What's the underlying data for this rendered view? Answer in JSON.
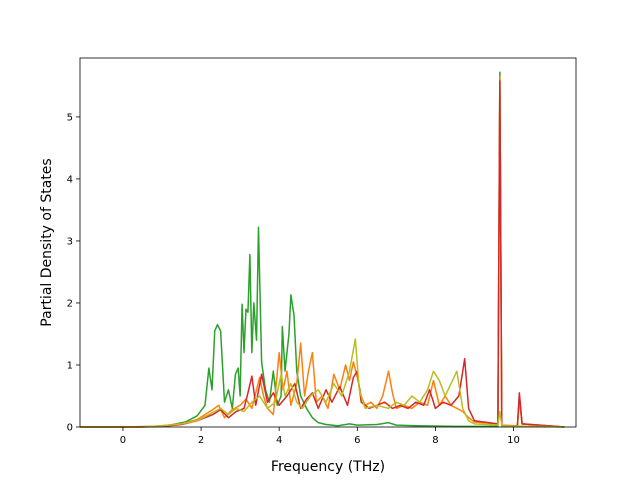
{
  "chart_data": {
    "type": "line",
    "title": "",
    "xlabel": "Frequency (THz)",
    "ylabel": "Partial Density of States",
    "xlim": [
      -1.1,
      11.6
    ],
    "ylim": [
      0,
      5.95
    ],
    "xticks": [
      0,
      2,
      4,
      6,
      8,
      10
    ],
    "yticks": [
      0,
      1,
      2,
      3,
      4,
      5
    ],
    "grid": false,
    "legend": "none",
    "series": [
      {
        "color": "#2ca02c",
        "points": [
          [
            -1.1,
            0
          ],
          [
            0.0,
            0
          ],
          [
            0.8,
            0.01
          ],
          [
            1.2,
            0.03
          ],
          [
            1.6,
            0.08
          ],
          [
            1.9,
            0.18
          ],
          [
            2.1,
            0.35
          ],
          [
            2.2,
            0.95
          ],
          [
            2.28,
            0.6
          ],
          [
            2.35,
            1.55
          ],
          [
            2.42,
            1.65
          ],
          [
            2.5,
            1.55
          ],
          [
            2.6,
            0.4
          ],
          [
            2.7,
            0.6
          ],
          [
            2.8,
            0.3
          ],
          [
            2.88,
            0.85
          ],
          [
            2.95,
            0.95
          ],
          [
            3.0,
            0.5
          ],
          [
            3.05,
            1.98
          ],
          [
            3.1,
            1.2
          ],
          [
            3.15,
            1.9
          ],
          [
            3.2,
            1.85
          ],
          [
            3.25,
            2.78
          ],
          [
            3.3,
            1.2
          ],
          [
            3.35,
            2.0
          ],
          [
            3.42,
            1.4
          ],
          [
            3.47,
            3.22
          ],
          [
            3.55,
            1.05
          ],
          [
            3.65,
            0.6
          ],
          [
            3.75,
            0.4
          ],
          [
            3.85,
            0.9
          ],
          [
            3.95,
            0.35
          ],
          [
            4.05,
            0.5
          ],
          [
            4.08,
            1.62
          ],
          [
            4.15,
            0.9
          ],
          [
            4.25,
            1.5
          ],
          [
            4.3,
            2.13
          ],
          [
            4.38,
            1.8
          ],
          [
            4.45,
            0.9
          ],
          [
            4.55,
            0.5
          ],
          [
            4.7,
            0.3
          ],
          [
            4.85,
            0.15
          ],
          [
            5.0,
            0.07
          ],
          [
            5.2,
            0.04
          ],
          [
            5.5,
            0.02
          ],
          [
            5.8,
            0.05
          ],
          [
            6.0,
            0.03
          ],
          [
            6.5,
            0.04
          ],
          [
            6.8,
            0.07
          ],
          [
            7.0,
            0.03
          ],
          [
            7.5,
            0.02
          ],
          [
            8.5,
            0.01
          ],
          [
            9.6,
            0.01
          ],
          [
            9.65,
            5.72
          ],
          [
            9.7,
            0.01
          ],
          [
            10.1,
            0.02
          ],
          [
            10.15,
            0.5
          ],
          [
            10.22,
            0.05
          ],
          [
            11.3,
            0
          ]
        ]
      },
      {
        "color": "#ff7f0e",
        "points": [
          [
            -1.1,
            0
          ],
          [
            0.5,
            0
          ],
          [
            1.0,
            0.02
          ],
          [
            1.5,
            0.05
          ],
          [
            1.9,
            0.12
          ],
          [
            2.1,
            0.2
          ],
          [
            2.3,
            0.28
          ],
          [
            2.45,
            0.35
          ],
          [
            2.6,
            0.15
          ],
          [
            2.8,
            0.28
          ],
          [
            3.0,
            0.35
          ],
          [
            3.15,
            0.45
          ],
          [
            3.3,
            0.3
          ],
          [
            3.5,
            0.8
          ],
          [
            3.6,
            0.5
          ],
          [
            3.7,
            0.3
          ],
          [
            3.85,
            0.2
          ],
          [
            4.0,
            1.2
          ],
          [
            4.1,
            0.6
          ],
          [
            4.2,
            0.9
          ],
          [
            4.3,
            0.35
          ],
          [
            4.45,
            0.7
          ],
          [
            4.55,
            1.35
          ],
          [
            4.65,
            0.5
          ],
          [
            4.75,
            0.9
          ],
          [
            4.85,
            1.2
          ],
          [
            4.95,
            0.4
          ],
          [
            5.1,
            0.5
          ],
          [
            5.25,
            0.3
          ],
          [
            5.4,
            0.85
          ],
          [
            5.55,
            0.6
          ],
          [
            5.7,
            1.0
          ],
          [
            5.8,
            0.75
          ],
          [
            5.9,
            1.05
          ],
          [
            6.0,
            0.8
          ],
          [
            6.1,
            0.5
          ],
          [
            6.2,
            0.35
          ],
          [
            6.35,
            0.4
          ],
          [
            6.5,
            0.3
          ],
          [
            6.65,
            0.5
          ],
          [
            6.8,
            0.9
          ],
          [
            6.9,
            0.55
          ],
          [
            7.0,
            0.3
          ],
          [
            7.2,
            0.35
          ],
          [
            7.4,
            0.3
          ],
          [
            7.6,
            0.4
          ],
          [
            7.8,
            0.35
          ],
          [
            7.95,
            0.75
          ],
          [
            8.1,
            0.35
          ],
          [
            8.25,
            0.5
          ],
          [
            8.4,
            0.35
          ],
          [
            8.55,
            0.3
          ],
          [
            8.7,
            0.25
          ],
          [
            8.85,
            0.15
          ],
          [
            9.0,
            0.08
          ],
          [
            9.6,
            0.05
          ],
          [
            9.65,
            5.65
          ],
          [
            9.7,
            0.03
          ],
          [
            10.1,
            0.02
          ],
          [
            10.15,
            0.45
          ],
          [
            10.22,
            0.05
          ],
          [
            11.3,
            0
          ]
        ]
      },
      {
        "color": "#d62728",
        "points": [
          [
            -1.1,
            0
          ],
          [
            0.5,
            0
          ],
          [
            1.0,
            0.01
          ],
          [
            1.5,
            0.04
          ],
          [
            1.9,
            0.1
          ],
          [
            2.1,
            0.15
          ],
          [
            2.3,
            0.2
          ],
          [
            2.5,
            0.28
          ],
          [
            2.7,
            0.15
          ],
          [
            2.9,
            0.25
          ],
          [
            3.1,
            0.3
          ],
          [
            3.2,
            0.55
          ],
          [
            3.3,
            0.82
          ],
          [
            3.4,
            0.35
          ],
          [
            3.55,
            0.85
          ],
          [
            3.7,
            0.4
          ],
          [
            3.85,
            0.55
          ],
          [
            4.0,
            0.35
          ],
          [
            4.2,
            0.5
          ],
          [
            4.4,
            0.7
          ],
          [
            4.55,
            0.3
          ],
          [
            4.7,
            0.45
          ],
          [
            4.85,
            0.55
          ],
          [
            5.0,
            0.3
          ],
          [
            5.2,
            0.6
          ],
          [
            5.35,
            0.4
          ],
          [
            5.55,
            0.65
          ],
          [
            5.75,
            0.35
          ],
          [
            5.9,
            0.8
          ],
          [
            6.0,
            0.9
          ],
          [
            6.1,
            0.4
          ],
          [
            6.3,
            0.3
          ],
          [
            6.5,
            0.35
          ],
          [
            6.7,
            0.4
          ],
          [
            6.9,
            0.3
          ],
          [
            7.1,
            0.35
          ],
          [
            7.3,
            0.3
          ],
          [
            7.5,
            0.4
          ],
          [
            7.7,
            0.35
          ],
          [
            7.85,
            0.6
          ],
          [
            8.0,
            0.3
          ],
          [
            8.2,
            0.4
          ],
          [
            8.4,
            0.35
          ],
          [
            8.6,
            0.5
          ],
          [
            8.75,
            1.1
          ],
          [
            8.85,
            0.3
          ],
          [
            9.0,
            0.1
          ],
          [
            9.6,
            0.05
          ],
          [
            9.65,
            5.58
          ],
          [
            9.7,
            0.02
          ],
          [
            10.1,
            0.02
          ],
          [
            10.15,
            0.55
          ],
          [
            10.22,
            0.05
          ],
          [
            11.3,
            0
          ]
        ]
      },
      {
        "color": "#bcbd22",
        "points": [
          [
            -1.1,
            0
          ],
          [
            0.5,
            0
          ],
          [
            1.0,
            0.02
          ],
          [
            1.5,
            0.05
          ],
          [
            1.9,
            0.1
          ],
          [
            2.2,
            0.2
          ],
          [
            2.5,
            0.3
          ],
          [
            2.7,
            0.2
          ],
          [
            2.9,
            0.3
          ],
          [
            3.1,
            0.25
          ],
          [
            3.3,
            0.4
          ],
          [
            3.5,
            0.5
          ],
          [
            3.7,
            0.3
          ],
          [
            3.9,
            0.4
          ],
          [
            4.05,
            0.85
          ],
          [
            4.15,
            0.5
          ],
          [
            4.3,
            0.7
          ],
          [
            4.45,
            0.4
          ],
          [
            4.6,
            0.3
          ],
          [
            4.8,
            0.5
          ],
          [
            5.0,
            0.6
          ],
          [
            5.2,
            0.4
          ],
          [
            5.4,
            0.7
          ],
          [
            5.6,
            0.5
          ],
          [
            5.8,
            0.9
          ],
          [
            5.95,
            1.42
          ],
          [
            6.05,
            0.6
          ],
          [
            6.2,
            0.3
          ],
          [
            6.5,
            0.35
          ],
          [
            6.8,
            0.3
          ],
          [
            7.0,
            0.4
          ],
          [
            7.2,
            0.35
          ],
          [
            7.4,
            0.5
          ],
          [
            7.6,
            0.4
          ],
          [
            7.8,
            0.6
          ],
          [
            7.95,
            0.9
          ],
          [
            8.1,
            0.75
          ],
          [
            8.25,
            0.5
          ],
          [
            8.4,
            0.7
          ],
          [
            8.55,
            0.9
          ],
          [
            8.7,
            0.3
          ],
          [
            8.85,
            0.1
          ],
          [
            9.0,
            0.05
          ],
          [
            9.6,
            0.03
          ],
          [
            9.65,
            0.25
          ],
          [
            9.7,
            0.02
          ],
          [
            11.3,
            0
          ]
        ]
      }
    ]
  }
}
